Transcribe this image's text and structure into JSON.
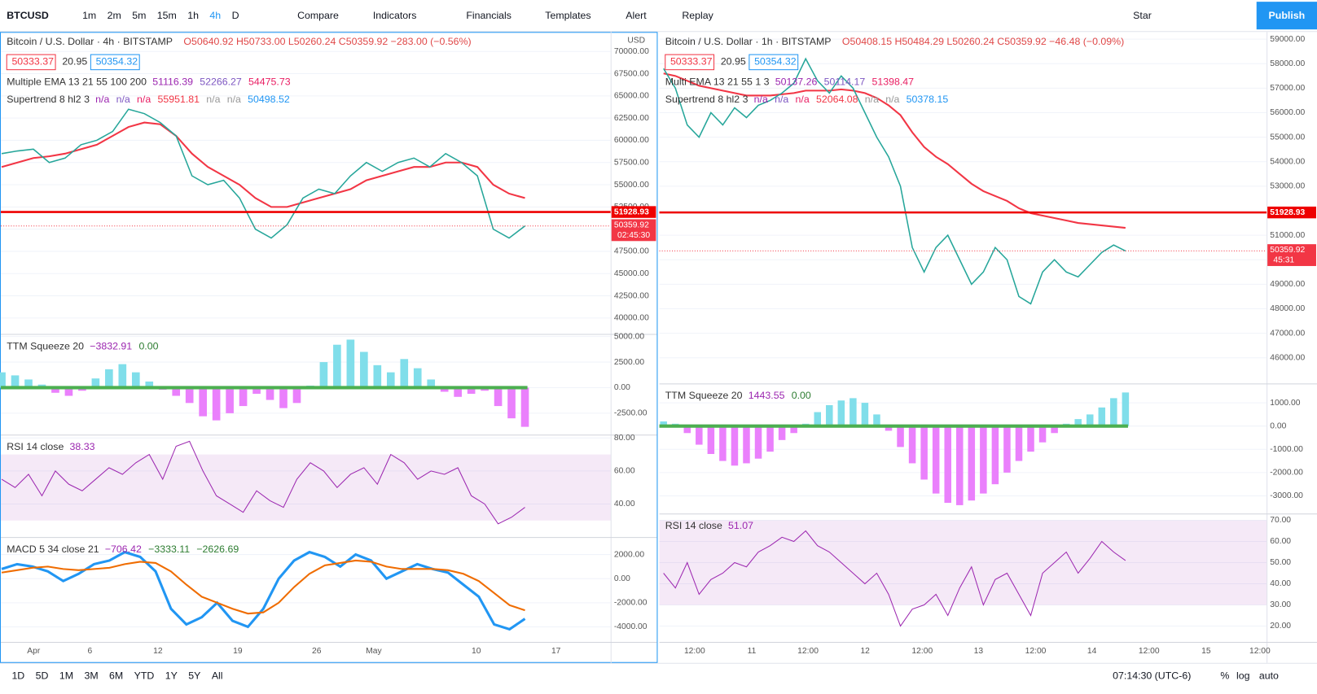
{
  "toolbar": {
    "symbol": "BTCUSD",
    "intervals": [
      "1m",
      "2m",
      "5m",
      "15m",
      "1h",
      "4h",
      "D"
    ],
    "compare": "Compare",
    "indicators": "Indicators",
    "financials": "Financials",
    "templates": "Templates",
    "alert": "Alert",
    "replay": "Replay",
    "star": "Star",
    "publish": "Publish"
  },
  "charts": [
    {
      "title": "Bitcoin / U.S. Dollar · 4h · BITSTAMP",
      "ohlc": "O50640.92 H50733.00 L50260.24 C50359.92 −283.00 (−0.56%)",
      "bid": "50333.37",
      "spread": "20.95",
      "ask": "50354.32",
      "studies": [
        {
          "name": "Multiple EMA 13 21 55 100 200",
          "values": [
            "51116.39",
            "52266.27",
            "54475.73"
          ]
        },
        {
          "name": "Supertrend 8 hl2 3",
          "values": [
            "n/a",
            "n/a",
            "n/a",
            "55951.81",
            "n/a",
            "n/a",
            "50498.52"
          ]
        }
      ],
      "currency": "USD",
      "countdown": "02:45:30",
      "price": {
        "ylim": [
          38200,
          72100
        ],
        "yticks": [
          {
            "value": 70000,
            "label": "70000.00"
          },
          {
            "value": 67500,
            "label": "67500.00"
          },
          {
            "value": 65000,
            "label": "65000.00"
          },
          {
            "value": 62500,
            "label": "62500.00"
          },
          {
            "value": 60000,
            "label": "60000.00"
          },
          {
            "value": 57500,
            "label": "57500.00"
          },
          {
            "value": 55000,
            "label": "55000.00"
          },
          {
            "value": 52500,
            "label": "52500.00"
          },
          {
            "value": 50000,
            "label": "50000.00"
          },
          {
            "value": 47500,
            "label": "47500.00"
          },
          {
            "value": 45000,
            "label": "45000.00"
          },
          {
            "value": 42500,
            "label": "42500.00"
          },
          {
            "value": 40000,
            "label": "40000.00"
          }
        ],
        "closes": [
          58500,
          58800,
          59000,
          57500,
          58000,
          59500,
          60000,
          61000,
          63500,
          63000,
          62000,
          60500,
          56000,
          55000,
          55500,
          53500,
          50000,
          49000,
          50500,
          53500,
          54500,
          54000,
          56000,
          57500,
          56500,
          57500,
          58000,
          57000,
          58500,
          57500,
          56000,
          50000,
          49000,
          50360
        ],
        "ema": [
          57000,
          57500,
          58000,
          58200,
          58500,
          59000,
          59500,
          60500,
          61500,
          62000,
          61800,
          60500,
          58500,
          57000,
          56000,
          55000,
          53500,
          52500,
          52500,
          53000,
          53500,
          54000,
          54500,
          55500,
          56000,
          56500,
          57000,
          57000,
          57500,
          57500,
          57000,
          55000,
          54000,
          53500
        ],
        "level": 51928.93,
        "last": 50359.92
      },
      "panes": [
        {
          "type": "histogram",
          "label": "TTM Squeeze 20",
          "readings": [
            "−3832.91",
            "0.00"
          ],
          "ylim": [
            -4600,
            5250
          ],
          "yticks": [
            {
              "value": 5000,
              "label": "5000.00"
            },
            {
              "value": 2500,
              "label": "2500.00"
            },
            {
              "value": 0,
              "label": "0.00"
            },
            {
              "value": -2500,
              "label": "-2500.00"
            }
          ],
          "values": [
            1500,
            1200,
            800,
            300,
            -500,
            -800,
            -300,
            900,
            1800,
            2300,
            1500,
            600,
            -200,
            -800,
            -1500,
            -2800,
            -3200,
            -2500,
            -1800,
            -600,
            -1200,
            -2000,
            -1500,
            200,
            2500,
            4200,
            4700,
            3500,
            2200,
            1500,
            2800,
            1900,
            800,
            -400,
            -900,
            -600,
            -300,
            -1800,
            -3000,
            -3833
          ]
        },
        {
          "type": "rsi",
          "label": "RSI 14 close",
          "readings": [
            "38.33"
          ],
          "ylim": [
            20,
            82
          ],
          "band": [
            30,
            70
          ],
          "yticks": [
            {
              "value": 80,
              "label": "80.00"
            },
            {
              "value": 60,
              "label": "60.00"
            },
            {
              "value": 40,
              "label": "40.00"
            }
          ],
          "values": [
            55,
            50,
            58,
            45,
            60,
            52,
            48,
            55,
            62,
            58,
            65,
            70,
            55,
            75,
            78,
            60,
            45,
            40,
            35,
            48,
            42,
            38,
            55,
            65,
            60,
            50,
            58,
            62,
            52,
            70,
            65,
            55,
            60,
            58,
            62,
            45,
            40,
            28,
            32,
            38
          ]
        },
        {
          "type": "macd",
          "label": "MACD 5 34 close 21",
          "readings": [
            "−706.42",
            "−3333.11",
            "−2626.69"
          ],
          "ylim": [
            -5250,
            3450
          ],
          "yticks": [
            {
              "value": 2000,
              "label": "2000.00"
            },
            {
              "value": 0,
              "label": "0.00"
            },
            {
              "value": -2000,
              "label": "-2000.00"
            },
            {
              "value": -4000,
              "label": "-4000.00"
            }
          ],
          "values": [
            800,
            1200,
            1000,
            600,
            -200,
            400,
            1200,
            1500,
            2200,
            1800,
            600,
            -2500,
            -3800,
            -3200,
            -2000,
            -3500,
            -4000,
            -2500,
            0,
            1500,
            2200,
            1800,
            1000,
            2000,
            1500,
            0,
            600,
            1200,
            800,
            500,
            -500,
            -1500,
            -3800,
            -4200,
            -3333
          ],
          "signal": [
            500,
            700,
            900,
            1000,
            800,
            700,
            800,
            900,
            1200,
            1400,
            1300,
            600,
            -500,
            -1500,
            -2000,
            -2500,
            -2900,
            -2800,
            -2000,
            -700,
            400,
            1100,
            1300,
            1500,
            1400,
            1000,
            800,
            800,
            800,
            700,
            400,
            -200,
            -1200,
            -2200,
            -2627
          ]
        }
      ],
      "time_labels": [
        "Apr",
        "6",
        "12",
        "19",
        "26",
        "May",
        "10",
        "17"
      ]
    },
    {
      "title": "Bitcoin / U.S. Dollar · 1h · BITSTAMP",
      "ohlc": "O50408.15 H50484.29 L50260.24 C50359.92 −46.48 (−0.09%)",
      "bid": "50333.37",
      "spread": "20.95",
      "ask": "50354.32",
      "studies": [
        {
          "name": "Multi EMA 13 21 55 1 3",
          "values": [
            "50137.26",
            "50114.17",
            "51398.47"
          ]
        },
        {
          "name": "Supertrend 8 hl2 3",
          "values": [
            "n/a",
            "n/a",
            "n/a",
            "52064.08",
            "n/a",
            "n/a",
            "50378.15"
          ]
        }
      ],
      "countdown": "45:31",
      "price": {
        "ylim": [
          44950,
          59260
        ],
        "yticks": [
          {
            "value": 59000,
            "label": "59000.00"
          },
          {
            "value": 58000,
            "label": "58000.00"
          },
          {
            "value": 57000,
            "label": "57000.00"
          },
          {
            "value": 56000,
            "label": "56000.00"
          },
          {
            "value": 55000,
            "label": "55000.00"
          },
          {
            "value": 54000,
            "label": "54000.00"
          },
          {
            "value": 53000,
            "label": "53000.00"
          },
          {
            "value": 52000,
            "label": "52000.00"
          },
          {
            "value": 51000,
            "label": "51000.00"
          },
          {
            "value": 50000,
            "label": "50000.00"
          },
          {
            "value": 49000,
            "label": "49000.00"
          },
          {
            "value": 48000,
            "label": "48000.00"
          },
          {
            "value": 47000,
            "label": "47000.00"
          },
          {
            "value": 46000,
            "label": "46000.00"
          }
        ],
        "closes": [
          57800,
          57000,
          55500,
          55000,
          56000,
          55500,
          56200,
          55800,
          56300,
          56500,
          56800,
          57200,
          58200,
          57300,
          56800,
          57500,
          57000,
          56000,
          55000,
          54200,
          53000,
          50500,
          49500,
          50500,
          51000,
          50000,
          49000,
          49500,
          50500,
          50000,
          48500,
          48200,
          49500,
          50000,
          49500,
          49300,
          49800,
          50300,
          50600,
          50360
        ],
        "ema": [
          57600,
          57500,
          57300,
          57100,
          57000,
          56900,
          56800,
          56700,
          56700,
          56700,
          56750,
          56800,
          56900,
          56900,
          56900,
          56950,
          56900,
          56800,
          56600,
          56300,
          55900,
          55200,
          54600,
          54200,
          53900,
          53500,
          53100,
          52800,
          52600,
          52400,
          52100,
          51900,
          51800,
          51700,
          51600,
          51500,
          51450,
          51400,
          51350,
          51300
        ],
        "level": 51928.93,
        "last": 50359.92
      },
      "panes": [
        {
          "type": "histogram",
          "label": "TTM Squeeze 20",
          "readings": [
            "1443.55",
            "0.00"
          ],
          "ylim": [
            -3760,
            1830
          ],
          "yticks": [
            {
              "value": 1000,
              "label": "1000.00"
            },
            {
              "value": 0,
              "label": "0.00"
            },
            {
              "value": -1000,
              "label": "-1000.00"
            },
            {
              "value": -2000,
              "label": "-2000.00"
            },
            {
              "value": -3000,
              "label": "-3000.00"
            }
          ],
          "values": [
            200,
            100,
            -300,
            -800,
            -1200,
            -1500,
            -1700,
            -1600,
            -1400,
            -1100,
            -600,
            -300,
            100,
            600,
            900,
            1100,
            1200,
            1000,
            500,
            -200,
            -900,
            -1600,
            -2300,
            -2900,
            -3300,
            -3400,
            -3200,
            -2900,
            -2500,
            -2000,
            -1500,
            -1100,
            -700,
            -300,
            100,
            300,
            500,
            800,
            1200,
            1444
          ]
        },
        {
          "type": "rsi",
          "label": "RSI 14 close",
          "readings": [
            "51.07"
          ],
          "ylim": [
            12.5,
            73.2
          ],
          "band": [
            30,
            70
          ],
          "yticks": [
            {
              "value": 70,
              "label": "70.00"
            },
            {
              "value": 60,
              "label": "60.00"
            },
            {
              "value": 50,
              "label": "50.00"
            },
            {
              "value": 40,
              "label": "40.00"
            },
            {
              "value": 30,
              "label": "30.00"
            },
            {
              "value": 20,
              "label": "20.00"
            }
          ],
          "values": [
            45,
            38,
            50,
            35,
            42,
            45,
            50,
            48,
            55,
            58,
            62,
            60,
            65,
            58,
            55,
            50,
            45,
            40,
            45,
            35,
            20,
            28,
            30,
            35,
            25,
            38,
            48,
            30,
            42,
            45,
            35,
            25,
            45,
            50,
            55,
            45,
            52,
            60,
            55,
            51
          ]
        }
      ],
      "time_labels": [
        "12:00",
        "11",
        "12:00",
        "12",
        "12:00",
        "13",
        "12:00",
        "14",
        "12:00",
        "15",
        "12:00"
      ]
    }
  ],
  "bottom": {
    "ranges": [
      "1D",
      "5D",
      "1M",
      "3M",
      "6M",
      "YTD",
      "1Y",
      "5Y",
      "All"
    ],
    "clock": "07:14:30 (UTC-6)",
    "percent": "%",
    "log": "log",
    "auto": "auto"
  }
}
